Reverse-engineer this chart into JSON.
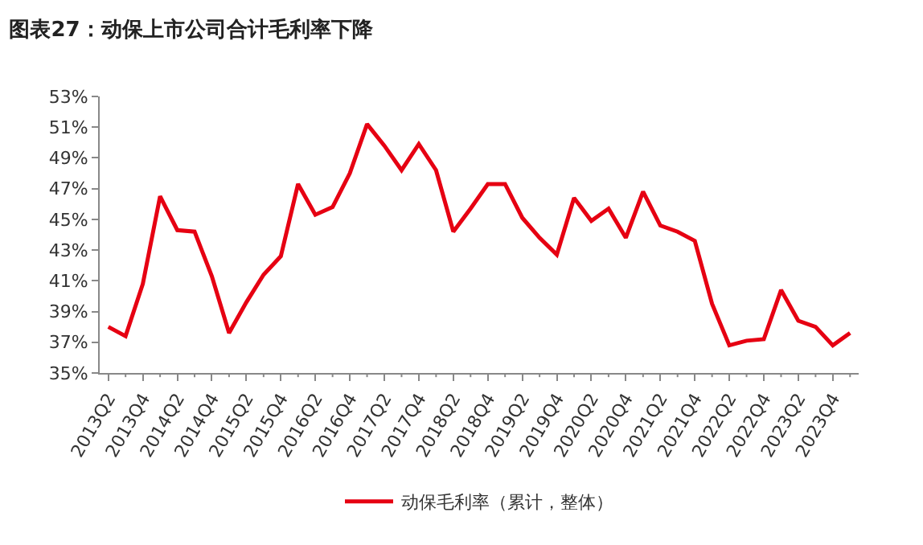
{
  "chart_data": {
    "type": "line",
    "title": "图表27：动保上市公司合计毛利率下降",
    "categories": [
      "2013Q2",
      null,
      "2013Q4",
      null,
      "2014Q2",
      null,
      "2014Q4",
      null,
      "2015Q2",
      null,
      "2015Q4",
      null,
      "2016Q2",
      null,
      "2016Q4",
      null,
      "2017Q2",
      null,
      "2017Q4",
      null,
      "2018Q2",
      null,
      "2018Q4",
      null,
      "2019Q2",
      null,
      "2019Q4",
      null,
      "2020Q2",
      null,
      "2020Q4",
      null,
      "2021Q2",
      null,
      "2021Q4",
      null,
      "2022Q2",
      null,
      "2022Q4",
      null,
      "2023Q2",
      null,
      "2023Q4",
      null
    ],
    "series": [
      {
        "name": "动保毛利率（累计，整体）",
        "color": "#e60012",
        "values": [
          38.0,
          37.4,
          40.8,
          46.5,
          44.3,
          44.2,
          41.3,
          37.6,
          39.6,
          41.4,
          42.6,
          47.3,
          45.3,
          45.8,
          48.0,
          51.2,
          49.8,
          48.2,
          49.9,
          48.2,
          44.2,
          45.7,
          47.3,
          47.3,
          45.1,
          43.8,
          42.7,
          46.4,
          44.9,
          45.7,
          43.8,
          46.8,
          44.6,
          44.2,
          43.6,
          39.5,
          36.8,
          37.1,
          37.2,
          40.4,
          38.4,
          38.0,
          36.8,
          37.6
        ]
      }
    ],
    "ylim": [
      35,
      53
    ],
    "yticks": [
      {
        "value": 35,
        "label": "35%"
      },
      {
        "value": 37,
        "label": "37%"
      },
      {
        "value": 39,
        "label": "39%"
      },
      {
        "value": 41,
        "label": "41%"
      },
      {
        "value": 43,
        "label": "43%"
      },
      {
        "value": 45,
        "label": "45%"
      },
      {
        "value": 47,
        "label": "47%"
      },
      {
        "value": 49,
        "label": "49%"
      },
      {
        "value": 51,
        "label": "51%"
      },
      {
        "value": 53,
        "label": "53%"
      }
    ],
    "legend": "bottom",
    "marker": "none",
    "line_style": "solid"
  }
}
